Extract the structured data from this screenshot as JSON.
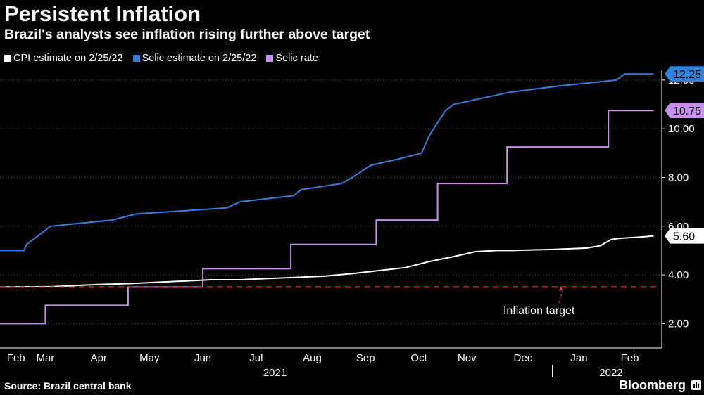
{
  "header": {
    "title": "Persistent Inflation",
    "subtitle": "Brazil's analysts see inflation rising further above target"
  },
  "legend": [
    {
      "label": "CPI estimate on 2/25/22",
      "color": "#ffffff"
    },
    {
      "label": "Selic estimate on 2/25/22",
      "color": "#2f80e0"
    },
    {
      "label": "Selic rate",
      "color": "#c78ff0"
    }
  ],
  "footer": {
    "source": "Source: Brazil central bank",
    "brand": "Bloomberg"
  },
  "chart_data": {
    "type": "line",
    "title": "Persistent Inflation",
    "subtitle": "Brazil's analysts see inflation rising further above target",
    "xlabel": "",
    "ylabel": "",
    "xlim": [
      0,
      12.4
    ],
    "ylim": [
      1,
      12.4
    ],
    "y_ticks": [
      2,
      4,
      6,
      8,
      10,
      12
    ],
    "y_tick_labels": [
      "2.00",
      "4.00",
      "6.00",
      "8.00",
      "10.00",
      "12.00"
    ],
    "x_ticks": [
      {
        "label": "Feb",
        "x": 0.3
      },
      {
        "label": "Mar",
        "x": 0.85
      },
      {
        "label": "Apr",
        "x": 1.85
      },
      {
        "label": "May",
        "x": 2.8
      },
      {
        "label": "Jun",
        "x": 3.8
      },
      {
        "label": "Jul",
        "x": 4.8
      },
      {
        "label": "Aug",
        "x": 5.85
      },
      {
        "label": "Sep",
        "x": 6.85
      },
      {
        "label": "Oct",
        "x": 7.85
      },
      {
        "label": "Nov",
        "x": 8.75
      },
      {
        "label": "Dec",
        "x": 9.8
      },
      {
        "label": "Jan",
        "x": 10.85
      },
      {
        "label": "Feb",
        "x": 11.8
      }
    ],
    "year_labels": [
      {
        "label": "2021",
        "x": 5.15
      },
      {
        "label": "2022",
        "x": 11.45
      }
    ],
    "year_separator_x": 10.35,
    "series": [
      {
        "name": "Selic estimate on 2/25/22",
        "color": "#2f80e0",
        "end_label": "12.25",
        "points": [
          [
            0,
            5.0
          ],
          [
            0.45,
            5.0
          ],
          [
            0.5,
            5.25
          ],
          [
            0.65,
            5.5
          ],
          [
            0.8,
            5.75
          ],
          [
            0.95,
            6.0
          ],
          [
            2.1,
            6.25
          ],
          [
            2.55,
            6.5
          ],
          [
            4.25,
            6.75
          ],
          [
            4.5,
            7.0
          ],
          [
            5.5,
            7.25
          ],
          [
            5.65,
            7.5
          ],
          [
            6.4,
            7.75
          ],
          [
            6.6,
            8.0
          ],
          [
            6.95,
            8.5
          ],
          [
            7.45,
            8.75
          ],
          [
            7.9,
            9.0
          ],
          [
            8.05,
            9.75
          ],
          [
            8.2,
            10.25
          ],
          [
            8.35,
            10.75
          ],
          [
            8.5,
            11.0
          ],
          [
            9.55,
            11.5
          ],
          [
            10.45,
            11.75
          ],
          [
            11.55,
            12.0
          ],
          [
            11.7,
            12.25
          ],
          [
            12.25,
            12.25
          ]
        ]
      },
      {
        "name": "Selic rate",
        "color": "#c78ff0",
        "end_label": "10.75",
        "points": [
          [
            0,
            2.0
          ],
          [
            0.85,
            2.0
          ],
          [
            0.85,
            2.75
          ],
          [
            2.4,
            2.75
          ],
          [
            2.4,
            3.5
          ],
          [
            3.8,
            3.5
          ],
          [
            3.8,
            4.25
          ],
          [
            5.45,
            4.25
          ],
          [
            5.45,
            5.25
          ],
          [
            7.05,
            5.25
          ],
          [
            7.05,
            6.25
          ],
          [
            8.2,
            6.25
          ],
          [
            8.2,
            7.75
          ],
          [
            9.5,
            7.75
          ],
          [
            9.5,
            9.25
          ],
          [
            11.4,
            9.25
          ],
          [
            11.4,
            10.75
          ],
          [
            12.25,
            10.75
          ]
        ]
      },
      {
        "name": "CPI estimate on 2/25/22",
        "color": "#ffffff",
        "end_label": "5.60",
        "points": [
          [
            0,
            3.5
          ],
          [
            1.0,
            3.52
          ],
          [
            1.8,
            3.6
          ],
          [
            2.5,
            3.65
          ],
          [
            3.0,
            3.7
          ],
          [
            3.5,
            3.75
          ],
          [
            3.95,
            3.8
          ],
          [
            4.5,
            3.8
          ],
          [
            5.0,
            3.85
          ],
          [
            5.6,
            3.9
          ],
          [
            6.1,
            3.95
          ],
          [
            6.6,
            4.05
          ],
          [
            7.0,
            4.15
          ],
          [
            7.6,
            4.3
          ],
          [
            8.05,
            4.55
          ],
          [
            8.5,
            4.75
          ],
          [
            8.9,
            4.95
          ],
          [
            9.3,
            5.0
          ],
          [
            9.6,
            5.0
          ],
          [
            10.4,
            5.05
          ],
          [
            11.0,
            5.1
          ],
          [
            11.25,
            5.2
          ],
          [
            11.45,
            5.45
          ],
          [
            11.6,
            5.5
          ],
          [
            12.0,
            5.55
          ],
          [
            12.25,
            5.6
          ]
        ]
      },
      {
        "name": "Inflation target",
        "color": "#e0404a",
        "dashed": true,
        "points": [
          [
            0,
            3.5
          ],
          [
            12.3,
            3.5
          ]
        ]
      }
    ],
    "annotations": [
      {
        "text": "Inflation target",
        "x": 10.1,
        "y": 2.5,
        "arrow_to": [
          10.55,
          3.4
        ]
      }
    ]
  }
}
